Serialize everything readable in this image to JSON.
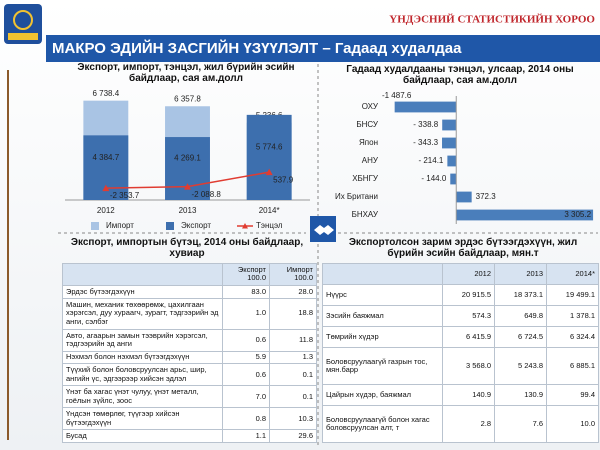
{
  "header": {
    "org": "ҮНДЭСНИЙ СТАТИСТИКИЙН ХОРОО",
    "title": "МАКРО ЭДИЙН ЗАСГИЙН ҮЗҮҮЛЭЛТ – Гадаад худалдаа"
  },
  "chart_data": [
    {
      "type": "bar",
      "title": "Экспорт, импорт, тэнцэл, жил бүрийн эсийн байдлаар, сая ам.долл",
      "categories": [
        "2012",
        "2013",
        "2014*"
      ],
      "series": [
        {
          "name": "Импорт",
          "color": "#a9c4e4",
          "values": [
            6738.4,
            6357.8,
            5236.6
          ],
          "value_labels": [
            "6 738.4",
            "6 357.8",
            "5 236.6"
          ]
        },
        {
          "name": "Экспорт",
          "color": "#3d6fae",
          "values": [
            4384.7,
            4269.1,
            5774.6
          ],
          "value_labels": [
            "4 384.7",
            "4 269.1",
            "5 774.6"
          ]
        },
        {
          "name": "Тэнцэл",
          "type": "line",
          "axis": "y2",
          "color": "#e03c31",
          "values": [
            -2353.7,
            -2088.8,
            537.9
          ],
          "value_labels": [
            "-2 353.7",
            "-2 088.8",
            "537.9"
          ]
        }
      ],
      "ylim": [
        0,
        7800
      ],
      "y2lim": [
        -4500,
        16300
      ]
    },
    {
      "type": "hbar",
      "title": "Гадаад худалдааны тэнцэл, улсаар, 2014 оны байдлаар, сая ам.долл",
      "categories": [
        "ОХУ",
        "БНСУ",
        "Япон",
        "АНУ",
        "ХБНГУ",
        "Их Британи",
        "БНХАУ"
      ],
      "values": [
        -1487.6,
        -338.8,
        -343.3,
        -214.1,
        -144.0,
        372.3,
        3305.2
      ],
      "value_labels": [
        "-1 487.6",
        "- 338.8",
        "- 343.3",
        "- 214.1",
        "- 144.0",
        "372.3",
        "3 305.2"
      ],
      "color": "#4a7ebb",
      "xlim": [
        -1600,
        3400
      ]
    }
  ],
  "tables": [
    {
      "title": "Экспорт, импортын бүтэц, 2014 оны байдлаар, хувиар",
      "columns": [
        {
          "name": "Экспорт",
          "total": "100.0"
        },
        {
          "name": "Импорт",
          "total": "100.0"
        }
      ],
      "rows": [
        [
          "Эрдэс бүтээгдэхүүн",
          "83.0",
          "28.0"
        ],
        [
          "Машин, механик төхөөрөмж, цахилгаан хэрэгсэл, дуу хураагч, зурагт, тэдгээрийн эд анги, сэлбэг",
          "1.0",
          "18.8"
        ],
        [
          "Авто, агаарын замын тээврийн хэрэгсэл, тэдгээрийн эд анги",
          "0.6",
          "11.8"
        ],
        [
          "Нэхмэл болон нэхмэл бүтээгдэхүүн",
          "5.9",
          "1.3"
        ],
        [
          "Түүхий болон боловсруулсан арьс, шир, ангийн үс, эдгээрээр хийсэн эдлэл",
          "0.6",
          "0.1"
        ],
        [
          "Үнэт ба хагас үнэт чулуу, үнэт металл, гоёлын зүйлс, зоос",
          "7.0",
          "0.1"
        ],
        [
          "Үндсэн төмөрлөг, түүгээр хийсэн бүтээгдэхүүн",
          "0.8",
          "10.3"
        ],
        [
          "Бусад",
          "1.1",
          "29.6"
        ]
      ]
    },
    {
      "title": "Экспортолсон зарим эрдэс бүтээгдэхүүн, жил бүрийн эсийн байдлаар, мян.т",
      "columns": [
        "2012",
        "2013",
        "2014*"
      ],
      "rows": [
        [
          "Нүүрс",
          "20 915.5",
          "18 373.1",
          "19 499.1"
        ],
        [
          "Зэсийн баяжмал",
          "574.3",
          "649.8",
          "1 378.1"
        ],
        [
          "Төмрийн хүдэр",
          "6 415.9",
          "6 724.5",
          "6 324.4"
        ],
        [
          "Боловсруулаагүй газрын тос, мян.барр",
          "3 568.0",
          "5 243.8",
          "6 885.1"
        ],
        [
          "Цайрын хүдэр, баяжмал",
          "140.9",
          "130.9",
          "99.4"
        ],
        [
          "Боловсруулаагүй болон хагас боловсруулсан алт, т",
          "2.8",
          "7.6",
          "10.0"
        ]
      ]
    }
  ]
}
